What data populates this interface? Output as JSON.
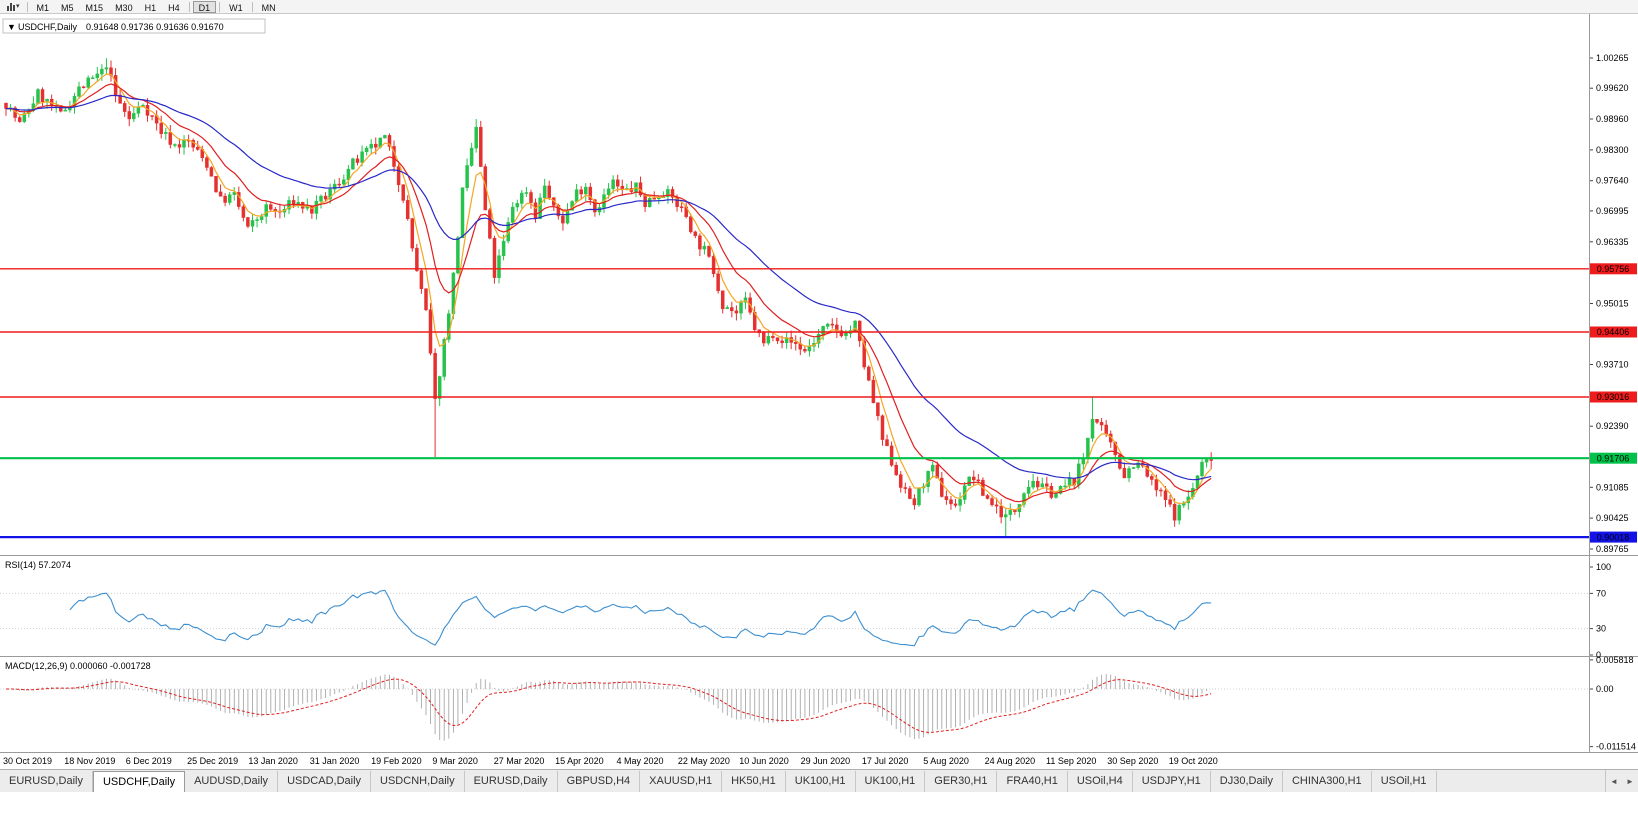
{
  "toolbar": {
    "chart_icon": "candlestick-chart-icon",
    "caret_glyph": "▾",
    "timeframes": [
      "M1",
      "M5",
      "M15",
      "M30",
      "H1",
      "H4",
      "D1",
      "W1",
      "MN"
    ],
    "active_timeframe": "D1"
  },
  "main_chart": {
    "collapse_icon": "▼",
    "title": "USDCHF,Daily",
    "ohlc_text": "0.91648 0.91736 0.91636 0.91670",
    "price_axis": [
      {
        "label": "1.00265",
        "value": 1.00265
      },
      {
        "label": "0.99620",
        "value": 0.9962
      },
      {
        "label": "0.98960",
        "value": 0.9896
      },
      {
        "label": "0.98300",
        "value": 0.983
      },
      {
        "label": "0.97640",
        "value": 0.9764
      },
      {
        "label": "0.96995",
        "value": 0.96995
      },
      {
        "label": "0.96335",
        "value": 0.96335
      },
      {
        "label": "0.95015",
        "value": 0.95015
      },
      {
        "label": "0.93710",
        "value": 0.9371
      },
      {
        "label": "0.92390",
        "value": 0.9239
      },
      {
        "label": "0.91085",
        "value": 0.91085
      },
      {
        "label": "0.90425",
        "value": 0.90425
      },
      {
        "label": "0.89765",
        "value": 0.89765
      }
    ],
    "levels": [
      {
        "label": "0.95756",
        "value": 0.95756,
        "color": "#ee1c1c",
        "width": 1.4
      },
      {
        "label": "0.94406",
        "value": 0.94406,
        "color": "#ee1c1c",
        "width": 1.4
      },
      {
        "label": "0.93016",
        "value": 0.93016,
        "color": "#ee1c1c",
        "width": 1.4
      },
      {
        "label": "0.91706",
        "value": 0.91706,
        "color": "#00c24a",
        "width": 2.2
      },
      {
        "label": "0.90018",
        "value": 0.90018,
        "color": "#1313e8",
        "width": 2.2
      }
    ],
    "dates": [
      "30 Oct 2019",
      "18 Nov 2019",
      "6 Dec 2019",
      "25 Dec 2019",
      "13 Jan 2020",
      "31 Jan 2020",
      "19 Feb 2020",
      "9 Mar 2020",
      "27 Mar 2020",
      "15 Apr 2020",
      "4 May 2020",
      "22 May 2020",
      "10 Jun 2020",
      "29 Jun 2020",
      "17 Jul 2020",
      "5 Aug 2020",
      "24 Aug 2020",
      "11 Sep 2020",
      "30 Sep 2020",
      "19 Oct 2020"
    ]
  },
  "rsi_panel": {
    "label": "RSI(14) 57.2074",
    "axis": [
      {
        "label": "100",
        "value": 100
      },
      {
        "label": "70",
        "value": 70
      },
      {
        "label": "30",
        "value": 30
      },
      {
        "label": "0",
        "value": 0
      }
    ],
    "level_lines": [
      70,
      30
    ],
    "line_color": "#3c8fd0"
  },
  "macd_panel": {
    "label": "MACD(12,26,9) 0.000060 -0.001728",
    "axis": [
      {
        "label": "0.005818",
        "value": 0.005818
      },
      {
        "label": "0.00",
        "value": 0
      },
      {
        "label": "-0.011514",
        "value": -0.011514
      }
    ],
    "histogram_color": "#a8a8a8",
    "signal_color": "#e02020"
  },
  "tabs": {
    "items": [
      "EURUSD,Daily",
      "USDCHF,Daily",
      "AUDUSD,Daily",
      "USDCAD,Daily",
      "USDCNH,Daily",
      "EURUSD,Daily",
      "GBPUSD,H4",
      "XAUUSD,H1",
      "HK50,H1",
      "UK100,H1",
      "UK100,H1",
      "GER30,H1",
      "FRA40,H1",
      "USOil,H4",
      "USDJPY,H1",
      "DJ30,Daily",
      "CHINA300,H1",
      "USOil,H1"
    ],
    "active_index": 1,
    "scroll_left_glyph": "◄",
    "scroll_right_glyph": "►"
  },
  "chart_data": {
    "type": "candlestick",
    "symbol": "USDCHF",
    "timeframe": "Daily",
    "current_ohlc": {
      "open": 0.91648,
      "high": 0.91736,
      "low": 0.91636,
      "close": 0.9167
    },
    "visible_price_range": [
      0.895,
      1.006
    ],
    "candle_count": 265,
    "up_color": "#27c24c",
    "down_color": "#e53030",
    "price_path": [
      [
        0,
        0.993
      ],
      [
        3,
        0.9885
      ],
      [
        7,
        0.995
      ],
      [
        12,
        0.9905
      ],
      [
        16,
        0.996
      ],
      [
        21,
        0.9995
      ],
      [
        22,
        1.0015
      ],
      [
        24,
        0.9945
      ],
      [
        27,
        0.9895
      ],
      [
        30,
        0.993
      ],
      [
        34,
        0.987
      ],
      [
        37,
        0.984
      ],
      [
        40,
        0.9848
      ],
      [
        44,
        0.98
      ],
      [
        47,
        0.9722
      ],
      [
        50,
        0.9732
      ],
      [
        53,
        0.966
      ],
      [
        57,
        0.9705
      ],
      [
        60,
        0.9695
      ],
      [
        63,
        0.972
      ],
      [
        67,
        0.97
      ],
      [
        70,
        0.973
      ],
      [
        73,
        0.9762
      ],
      [
        76,
        0.98
      ],
      [
        80,
        0.9832
      ],
      [
        83,
        0.9855
      ],
      [
        85,
        0.98
      ],
      [
        87,
        0.9732
      ],
      [
        89,
        0.962
      ],
      [
        92,
        0.948
      ],
      [
        93,
        0.939
      ],
      [
        94,
        0.929
      ],
      [
        96,
        0.942
      ],
      [
        98,
        0.956
      ],
      [
        100,
        0.974
      ],
      [
        103,
        0.9878
      ],
      [
        105,
        0.97
      ],
      [
        107,
        0.9562
      ],
      [
        109,
        0.963
      ],
      [
        111,
        0.971
      ],
      [
        114,
        0.9745
      ],
      [
        116,
        0.9692
      ],
      [
        118,
        0.9755
      ],
      [
        120,
        0.97
      ],
      [
        122,
        0.968
      ],
      [
        125,
        0.974
      ],
      [
        127,
        0.9755
      ],
      [
        129,
        0.9702
      ],
      [
        131,
        0.973
      ],
      [
        133,
        0.976
      ],
      [
        135,
        0.974
      ],
      [
        138,
        0.975
      ],
      [
        140,
        0.9716
      ],
      [
        142,
        0.973
      ],
      [
        144,
        0.9742
      ],
      [
        146,
        0.9726
      ],
      [
        149,
        0.969
      ],
      [
        151,
        0.964
      ],
      [
        153,
        0.9615
      ],
      [
        155,
        0.9572
      ],
      [
        157,
        0.9502
      ],
      [
        160,
        0.948
      ],
      [
        162,
        0.9506
      ],
      [
        164,
        0.945
      ],
      [
        166,
        0.9415
      ],
      [
        168,
        0.944
      ],
      [
        170,
        0.9425
      ],
      [
        173,
        0.9415
      ],
      [
        175,
        0.94
      ],
      [
        177,
        0.942
      ],
      [
        179,
        0.9445
      ],
      [
        181,
        0.945
      ],
      [
        184,
        0.9436
      ],
      [
        186,
        0.9456
      ],
      [
        188,
        0.937
      ],
      [
        190,
        0.929
      ],
      [
        192,
        0.921
      ],
      [
        195,
        0.914
      ],
      [
        197,
        0.9095
      ],
      [
        199,
        0.9075
      ],
      [
        201,
        0.912
      ],
      [
        203,
        0.9145
      ],
      [
        205,
        0.9095
      ],
      [
        208,
        0.9065
      ],
      [
        210,
        0.9115
      ],
      [
        212,
        0.913
      ],
      [
        214,
        0.9095
      ],
      [
        216,
        0.9075
      ],
      [
        219,
        0.9045
      ],
      [
        221,
        0.906
      ],
      [
        223,
        0.9105
      ],
      [
        225,
        0.9125
      ],
      [
        227,
        0.9105
      ],
      [
        230,
        0.9095
      ],
      [
        232,
        0.911
      ],
      [
        234,
        0.9125
      ],
      [
        236,
        0.917
      ],
      [
        238,
        0.9262
      ],
      [
        240,
        0.923
      ],
      [
        243,
        0.918
      ],
      [
        245,
        0.9135
      ],
      [
        247,
        0.916
      ],
      [
        249,
        0.915
      ],
      [
        251,
        0.9115
      ],
      [
        254,
        0.908
      ],
      [
        256,
        0.905
      ],
      [
        258,
        0.9075
      ],
      [
        260,
        0.9105
      ],
      [
        262,
        0.9158
      ],
      [
        264,
        0.9167
      ]
    ],
    "spikes": [
      {
        "i": 22,
        "high": 1.0026
      },
      {
        "i": 94,
        "low": 0.9173
      },
      {
        "i": 103,
        "high": 0.9896
      },
      {
        "i": 219,
        "low": 0.9003
      },
      {
        "i": 238,
        "high": 0.9301
      }
    ],
    "moving_averages": [
      {
        "name": "fast",
        "period": 5,
        "color": "#f5a623"
      },
      {
        "name": "medium",
        "period": 13,
        "color": "#e02020"
      },
      {
        "name": "slow",
        "period": 34,
        "color": "#2929c8"
      }
    ]
  }
}
